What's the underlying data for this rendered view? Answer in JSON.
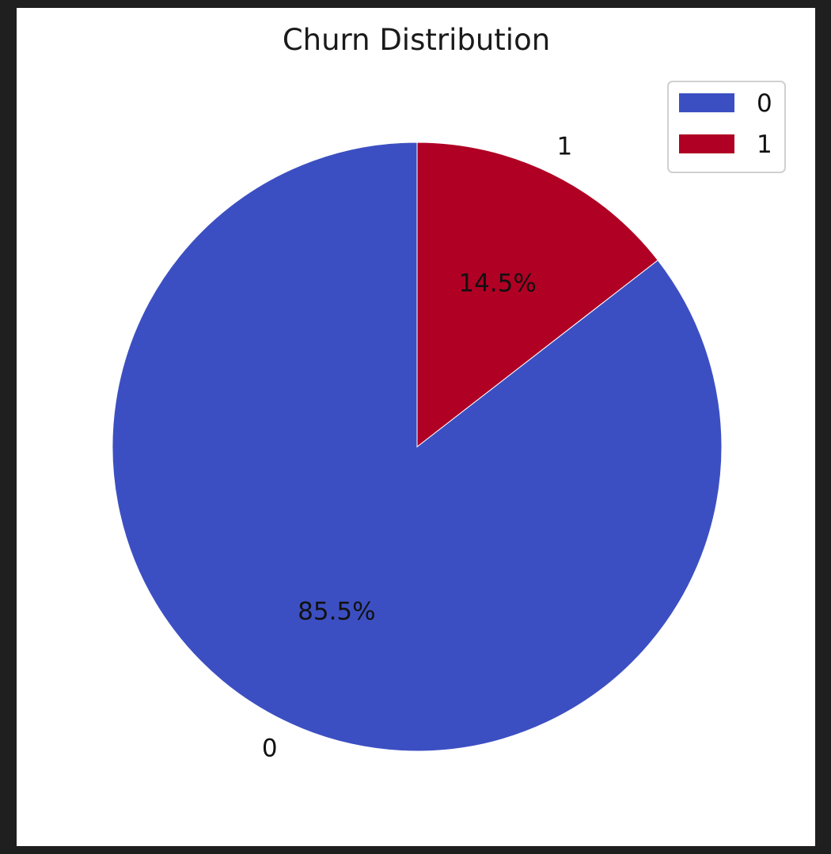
{
  "chart_data": {
    "type": "pie",
    "title": "Churn Distribution",
    "categories": [
      "0",
      "1"
    ],
    "values": [
      85.5,
      14.5
    ],
    "percent_labels": [
      "85.5%",
      "14.5%"
    ],
    "colors": [
      "#3c4fc2",
      "#b00024"
    ],
    "start_angle_deg": 90,
    "direction": "clockwise",
    "legend": {
      "position": "top-right",
      "entries": [
        "0",
        "1"
      ]
    }
  }
}
